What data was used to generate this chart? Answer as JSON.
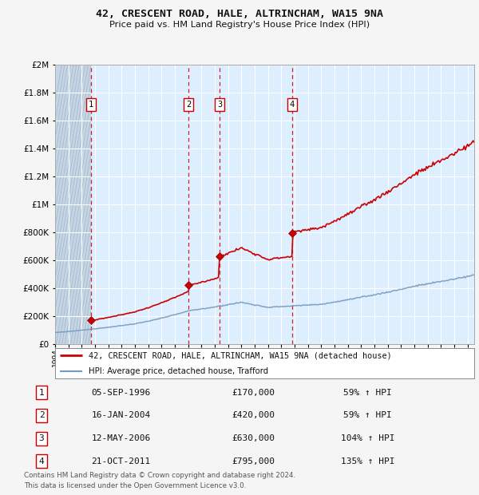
{
  "title1": "42, CRESCENT ROAD, HALE, ALTRINCHAM, WA15 9NA",
  "title2": "Price paid vs. HM Land Registry's House Price Index (HPI)",
  "sales": [
    {
      "num": 1,
      "date_str": "05-SEP-1996",
      "date_dec": 1996.68,
      "price": 170000,
      "pct": "59%",
      "dir": "↑"
    },
    {
      "num": 2,
      "date_str": "16-JAN-2004",
      "date_dec": 2004.04,
      "price": 420000,
      "pct": "59%",
      "dir": "↑"
    },
    {
      "num": 3,
      "date_str": "12-MAY-2006",
      "date_dec": 2006.36,
      "price": 630000,
      "pct": "104%",
      "dir": "↑"
    },
    {
      "num": 4,
      "date_str": "21-OCT-2011",
      "date_dec": 2011.8,
      "price": 795000,
      "pct": "135%",
      "dir": "↑"
    }
  ],
  "hpi_line_color": "#7799bb",
  "price_line_color": "#cc0000",
  "plot_bg_color": "#ddeeff",
  "grid_color": "#ffffff",
  "ylim": [
    0,
    2000000
  ],
  "xlim_start": 1994.0,
  "xlim_end": 2025.5,
  "footer1": "Contains HM Land Registry data © Crown copyright and database right 2024.",
  "footer2": "This data is licensed under the Open Government Licence v3.0.",
  "legend_label_red": "42, CRESCENT ROAD, HALE, ALTRINCHAM, WA15 9NA (detached house)",
  "legend_label_blue": "HPI: Average price, detached house, Trafford"
}
